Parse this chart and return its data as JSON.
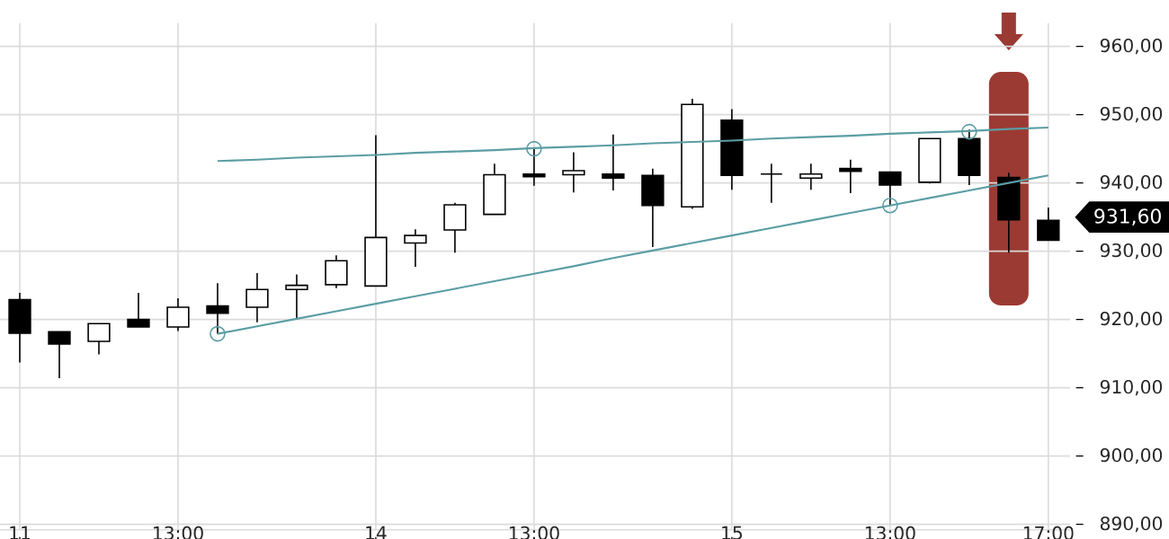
{
  "chart_data": {
    "type": "candlestick",
    "categories": [
      "11",
      null,
      null,
      null,
      "13:00",
      null,
      null,
      null,
      null,
      "14",
      null,
      null,
      null,
      "13:00",
      null,
      null,
      null,
      null,
      "15",
      null,
      null,
      null,
      "13:00",
      null,
      null,
      null,
      "17:00"
    ],
    "ohlc": [
      [
        922.9,
        923.9,
        913.7,
        918.0
      ],
      [
        918.2,
        918.2,
        911.4,
        916.4
      ],
      [
        916.8,
        919.4,
        914.9,
        919.4
      ],
      [
        920.0,
        923.9,
        918.9,
        918.9
      ],
      [
        918.9,
        923.1,
        918.3,
        921.8
      ],
      [
        922.0,
        925.3,
        917.9,
        920.9
      ],
      [
        921.8,
        926.8,
        919.6,
        924.4
      ],
      [
        924.4,
        926.6,
        920.0,
        925.0
      ],
      [
        925.1,
        929.4,
        924.6,
        928.6
      ],
      [
        924.9,
        947.0,
        924.9,
        932.0
      ],
      [
        931.2,
        933.2,
        927.7,
        932.3
      ],
      [
        933.1,
        937.1,
        929.8,
        936.8
      ],
      [
        935.4,
        942.8,
        935.4,
        941.2
      ],
      [
        941.3,
        945.0,
        939.6,
        940.9
      ],
      [
        941.2,
        944.5,
        938.6,
        941.8
      ],
      [
        941.3,
        947.1,
        938.9,
        940.7
      ],
      [
        941.1,
        942.1,
        930.6,
        936.7
      ],
      [
        936.5,
        952.3,
        936.2,
        951.5
      ],
      [
        949.2,
        950.8,
        939.0,
        941.1
      ],
      [
        941.3,
        942.8,
        937.1,
        941.3
      ],
      [
        940.7,
        942.8,
        939.0,
        941.3
      ],
      [
        942.1,
        943.4,
        938.5,
        941.7
      ],
      [
        941.6,
        941.6,
        936.7,
        939.7
      ],
      [
        940.1,
        946.5,
        939.9,
        946.5
      ],
      [
        946.5,
        947.8,
        939.7,
        941.1
      ],
      [
        940.8,
        941.5,
        929.8,
        934.6
      ],
      [
        934.5,
        936.4,
        931.6,
        931.6
      ]
    ],
    "series": [
      {
        "type": "line",
        "color": "#5b9ea4",
        "values": [
          null,
          null,
          null,
          null,
          null,
          943.2,
          943.4,
          943.7,
          943.9,
          944.1,
          944.4,
          944.6,
          944.8,
          945.1,
          945.3,
          945.5,
          945.8,
          946.0,
          946.2,
          946.5,
          946.7,
          946.9,
          947.2,
          947.4,
          947.6,
          947.9,
          948.1
        ]
      },
      {
        "type": "line",
        "color": "#5b9ea4",
        "values": [
          null,
          null,
          null,
          null,
          null,
          917.9,
          919.0,
          920.1,
          921.2,
          922.3,
          923.4,
          924.5,
          925.6,
          926.7,
          927.8,
          929.0,
          930.1,
          931.2,
          932.3,
          933.4,
          934.5,
          935.6,
          936.7,
          937.8,
          938.9,
          940.0,
          941.1
        ]
      },
      {
        "type": "scatter",
        "color": "#5b9ea4",
        "marker": "circle",
        "values": [
          null,
          null,
          null,
          null,
          null,
          917.9,
          null,
          null,
          null,
          null,
          null,
          null,
          null,
          945.0,
          null,
          null,
          null,
          null,
          null,
          null,
          null,
          null,
          936.7,
          null,
          947.5,
          null,
          null
        ]
      }
    ],
    "ylim": [
      889.2,
      963.4
    ],
    "yticks": [
      {
        "value": 890,
        "label": "890,00"
      },
      {
        "value": 900,
        "label": "900,00"
      },
      {
        "value": 910,
        "label": "910,00"
      },
      {
        "value": 920,
        "label": "920,00"
      },
      {
        "value": 930,
        "label": "930,00"
      },
      {
        "value": 940,
        "label": "940,00"
      },
      {
        "value": 950,
        "label": "950,00"
      },
      {
        "value": 960,
        "label": "960,00"
      }
    ],
    "grid": true,
    "annotations": [
      "931,60"
    ]
  }
}
